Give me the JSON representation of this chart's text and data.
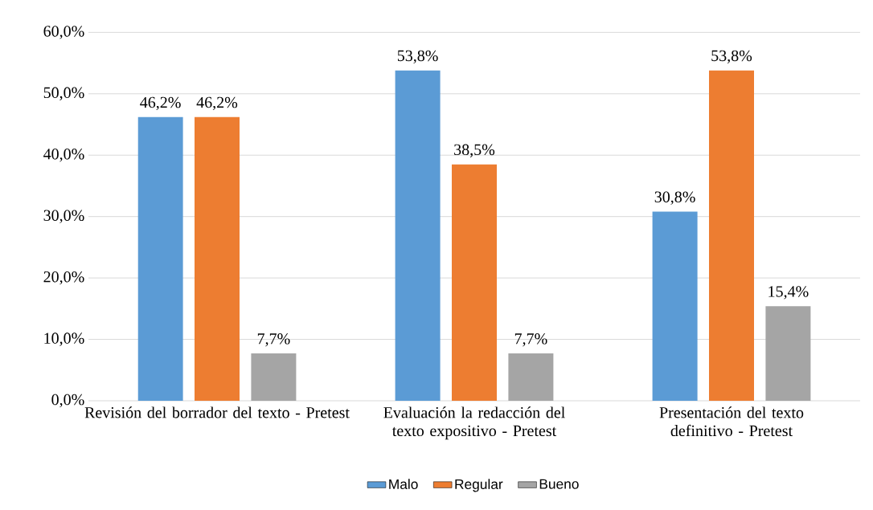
{
  "chart_data": {
    "type": "bar",
    "categories": [
      "Revisión del borrador del texto - Pretest",
      "Evaluación la redacción del texto expositivo - Pretest",
      "Presentación del texto definitivo - Pretest"
    ],
    "series": [
      {
        "name": "Malo",
        "color": "#5b9bd5",
        "values": [
          46.2,
          53.8,
          30.8
        ],
        "value_labels": [
          "46,2%",
          "53,8%",
          "30,8%"
        ]
      },
      {
        "name": "Regular",
        "color": "#ed7d31",
        "values": [
          46.2,
          38.5,
          53.8
        ],
        "value_labels": [
          "46,2%",
          "38,5%",
          "53,8%"
        ]
      },
      {
        "name": "Bueno",
        "color": "#a5a5a5",
        "values": [
          7.7,
          7.7,
          15.4
        ],
        "value_labels": [
          "7,7%",
          "7,7%",
          "15,4%"
        ]
      }
    ],
    "ylim": [
      0,
      60
    ],
    "yticks": [
      {
        "value": 0,
        "label": "0,0%"
      },
      {
        "value": 10,
        "label": "10,0%"
      },
      {
        "value": 20,
        "label": "20,0%"
      },
      {
        "value": 30,
        "label": "30,0%"
      },
      {
        "value": 40,
        "label": "40,0%"
      },
      {
        "value": 50,
        "label": "50,0%"
      },
      {
        "value": 60,
        "label": "60,0%"
      }
    ],
    "grid": "y",
    "legend": "bottom"
  }
}
